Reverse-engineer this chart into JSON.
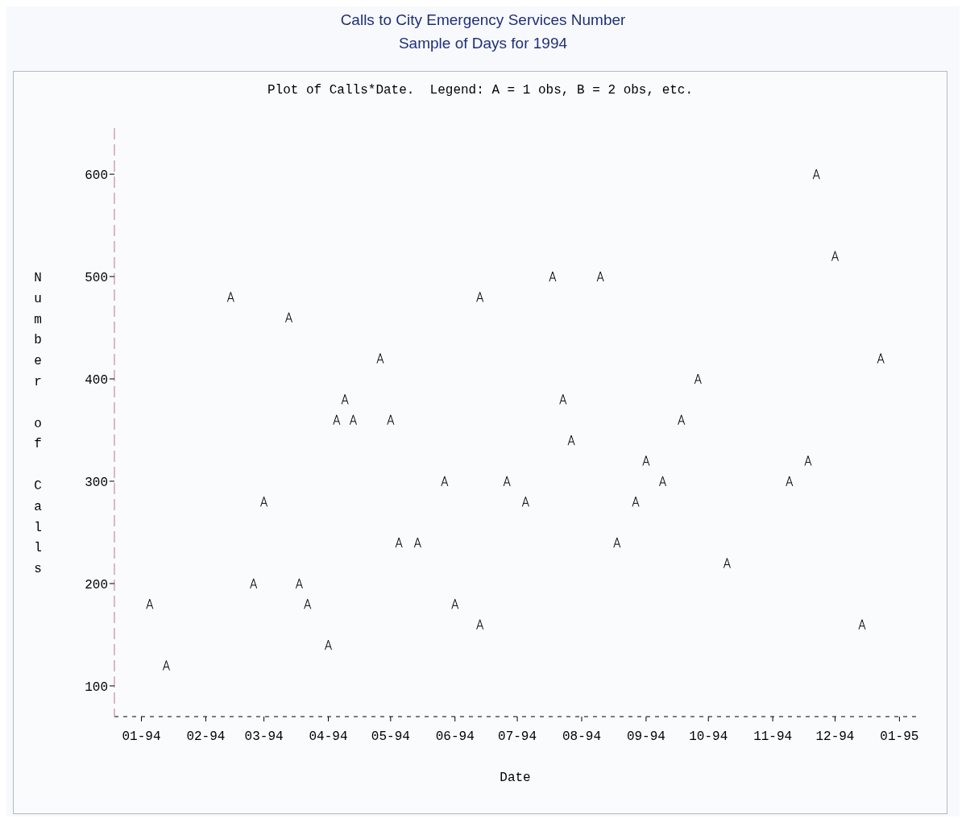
{
  "chart_data": {
    "type": "scatter",
    "title": "Calls to City Emergency Services Number",
    "subtitle": "Sample of Days for 1994",
    "annotations": [
      "Plot of Calls*Date.  Legend: A = 1 obs, B = 2 obs, etc."
    ],
    "xlabel": "Date",
    "ylabel": "Number of Calls",
    "x": [
      "1994-01-05",
      "1994-01-13",
      "1994-02-13",
      "1994-02-24",
      "1994-03-01",
      "1994-03-13",
      "1994-03-18",
      "1994-03-22",
      "1994-04-01",
      "1994-04-05",
      "1994-04-09",
      "1994-04-13",
      "1994-04-26",
      "1994-05-01",
      "1994-05-05",
      "1994-05-14",
      "1994-05-27",
      "1994-06-01",
      "1994-06-13",
      "1994-06-13",
      "1994-06-26",
      "1994-07-05",
      "1994-07-18",
      "1994-07-23",
      "1994-07-27",
      "1994-08-10",
      "1994-08-18",
      "1994-08-27",
      "1994-09-01",
      "1994-09-09",
      "1994-09-18",
      "1994-09-26",
      "1994-10-10",
      "1994-11-09",
      "1994-11-18",
      "1994-11-22",
      "1994-12-01",
      "1994-12-14",
      "1994-12-23"
    ],
    "series": [
      {
        "color": "#000000",
        "values": [
          180,
          120,
          480,
          200,
          280,
          460,
          200,
          180,
          140,
          360,
          380,
          360,
          420,
          360,
          240,
          240,
          300,
          180,
          480,
          160,
          300,
          280,
          500,
          380,
          340,
          500,
          240,
          280,
          320,
          300,
          360,
          400,
          220,
          300,
          320,
          600,
          520,
          160,
          420
        ]
      }
    ],
    "xlim": [
      "1993-12-19",
      "1995-01-09"
    ],
    "xticks": [
      {
        "value": "1994-01-01",
        "label": "01-94"
      },
      {
        "value": "1994-02-01",
        "label": "02-94"
      },
      {
        "value": "1994-03-01",
        "label": "03-94"
      },
      {
        "value": "1994-04-01",
        "label": "04-94"
      },
      {
        "value": "1994-05-01",
        "label": "05-94"
      },
      {
        "value": "1994-06-01",
        "label": "06-94"
      },
      {
        "value": "1994-07-01",
        "label": "07-94"
      },
      {
        "value": "1994-08-01",
        "label": "08-94"
      },
      {
        "value": "1994-09-01",
        "label": "09-94"
      },
      {
        "value": "1994-10-01",
        "label": "10-94"
      },
      {
        "value": "1994-11-01",
        "label": "11-94"
      },
      {
        "value": "1994-12-01",
        "label": "12-94"
      },
      {
        "value": "1995-01-01",
        "label": "01-95"
      }
    ],
    "ylim": [
      70,
      645
    ],
    "yticks": [
      100,
      200,
      300,
      400,
      500,
      600
    ],
    "grid": false,
    "legend": false
  }
}
